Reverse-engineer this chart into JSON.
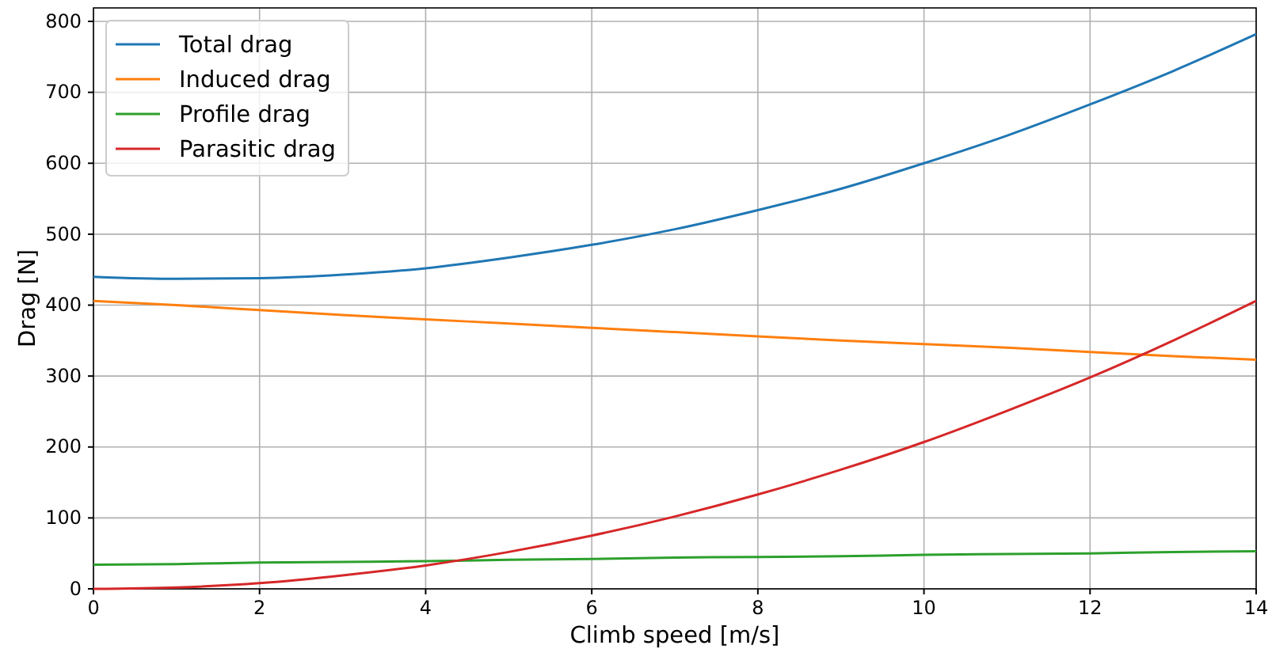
{
  "chart_data": {
    "type": "line",
    "xlabel": "Climb speed [m/s]",
    "ylabel": "Drag [N]",
    "x": [
      0,
      1,
      2,
      3,
      4,
      5,
      6,
      7,
      8,
      9,
      10,
      11,
      12,
      13,
      14
    ],
    "series": [
      {
        "name": "Total drag",
        "color": "#1f77b4",
        "values": [
          440,
          437,
          438,
          443,
          452,
          467,
          485,
          507,
          534,
          564,
          600,
          639,
          683,
          730,
          782
        ]
      },
      {
        "name": "Induced drag",
        "color": "#ff7f0e",
        "values": [
          406,
          400,
          393,
          386,
          380,
          374,
          368,
          362,
          356,
          350,
          345,
          340,
          334,
          328,
          323
        ]
      },
      {
        "name": "Profile drag",
        "color": "#2ca02c",
        "values": [
          34,
          35,
          37,
          38,
          39,
          41,
          42,
          44,
          45,
          46,
          48,
          49,
          50,
          52,
          53
        ]
      },
      {
        "name": "Parasitic drag",
        "color": "#d62728",
        "values": [
          0,
          2,
          8,
          19,
          33,
          52,
          75,
          102,
          133,
          168,
          207,
          251,
          298,
          350,
          406
        ]
      }
    ],
    "xlim": [
      0,
      14
    ],
    "xticks": [
      0,
      2,
      4,
      6,
      8,
      10,
      12,
      14
    ],
    "ylim": [
      0,
      819
    ],
    "yticks": [
      0,
      100,
      200,
      300,
      400,
      500,
      600,
      700,
      800
    ],
    "grid": true,
    "legend": "top left"
  }
}
